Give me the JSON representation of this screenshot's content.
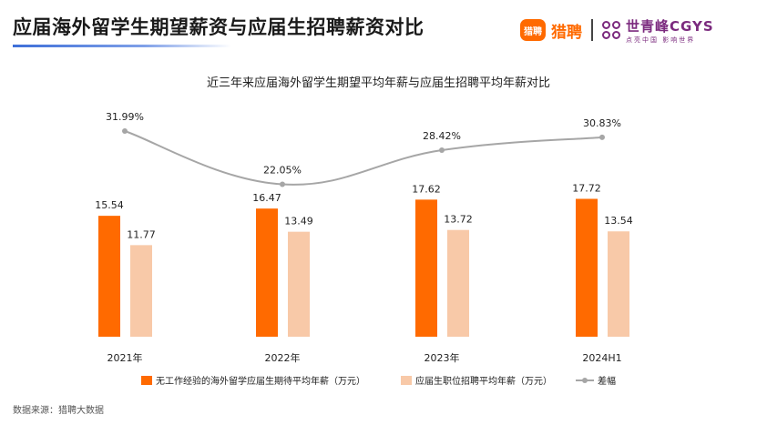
{
  "page": {
    "title": "应届海外留学生期望薪资与应届生招聘薪资对比",
    "source": "数据来源：猎聘大数据"
  },
  "brands": {
    "liepin_logo": "猎聘",
    "liepin_name": "猎聘",
    "cgys_name": "世青峰CGYS",
    "cgys_slogan": "点亮中国 影响世界"
  },
  "chart_data": {
    "type": "bar",
    "title": "近三年来应届海外留学生期望平均年薪与应届生招聘平均年薪对比",
    "categories": [
      "2021年",
      "2022年",
      "2023年",
      "2024H1"
    ],
    "series": [
      {
        "name": "无工作经验的海外留学应届生期待平均年薪（万元）",
        "type": "bar",
        "color": "#ff6a00",
        "values": [
          15.54,
          16.47,
          17.62,
          17.72
        ],
        "labels": [
          "15.54",
          "16.47",
          "17.62",
          "17.72"
        ]
      },
      {
        "name": "应届生职位招聘平均年薪（万元）",
        "type": "bar",
        "color": "#f8c9a8",
        "values": [
          11.77,
          13.49,
          13.72,
          13.54
        ],
        "labels": [
          "11.77",
          "13.49",
          "13.72",
          "13.54"
        ]
      },
      {
        "name": "差幅",
        "type": "line",
        "color": "#a6a6a6",
        "values": [
          31.99,
          22.05,
          28.42,
          30.83
        ],
        "labels": [
          "31.99%",
          "22.05%",
          "28.42%",
          "30.83%"
        ]
      }
    ],
    "legend_position": "bottom",
    "grid": false
  }
}
